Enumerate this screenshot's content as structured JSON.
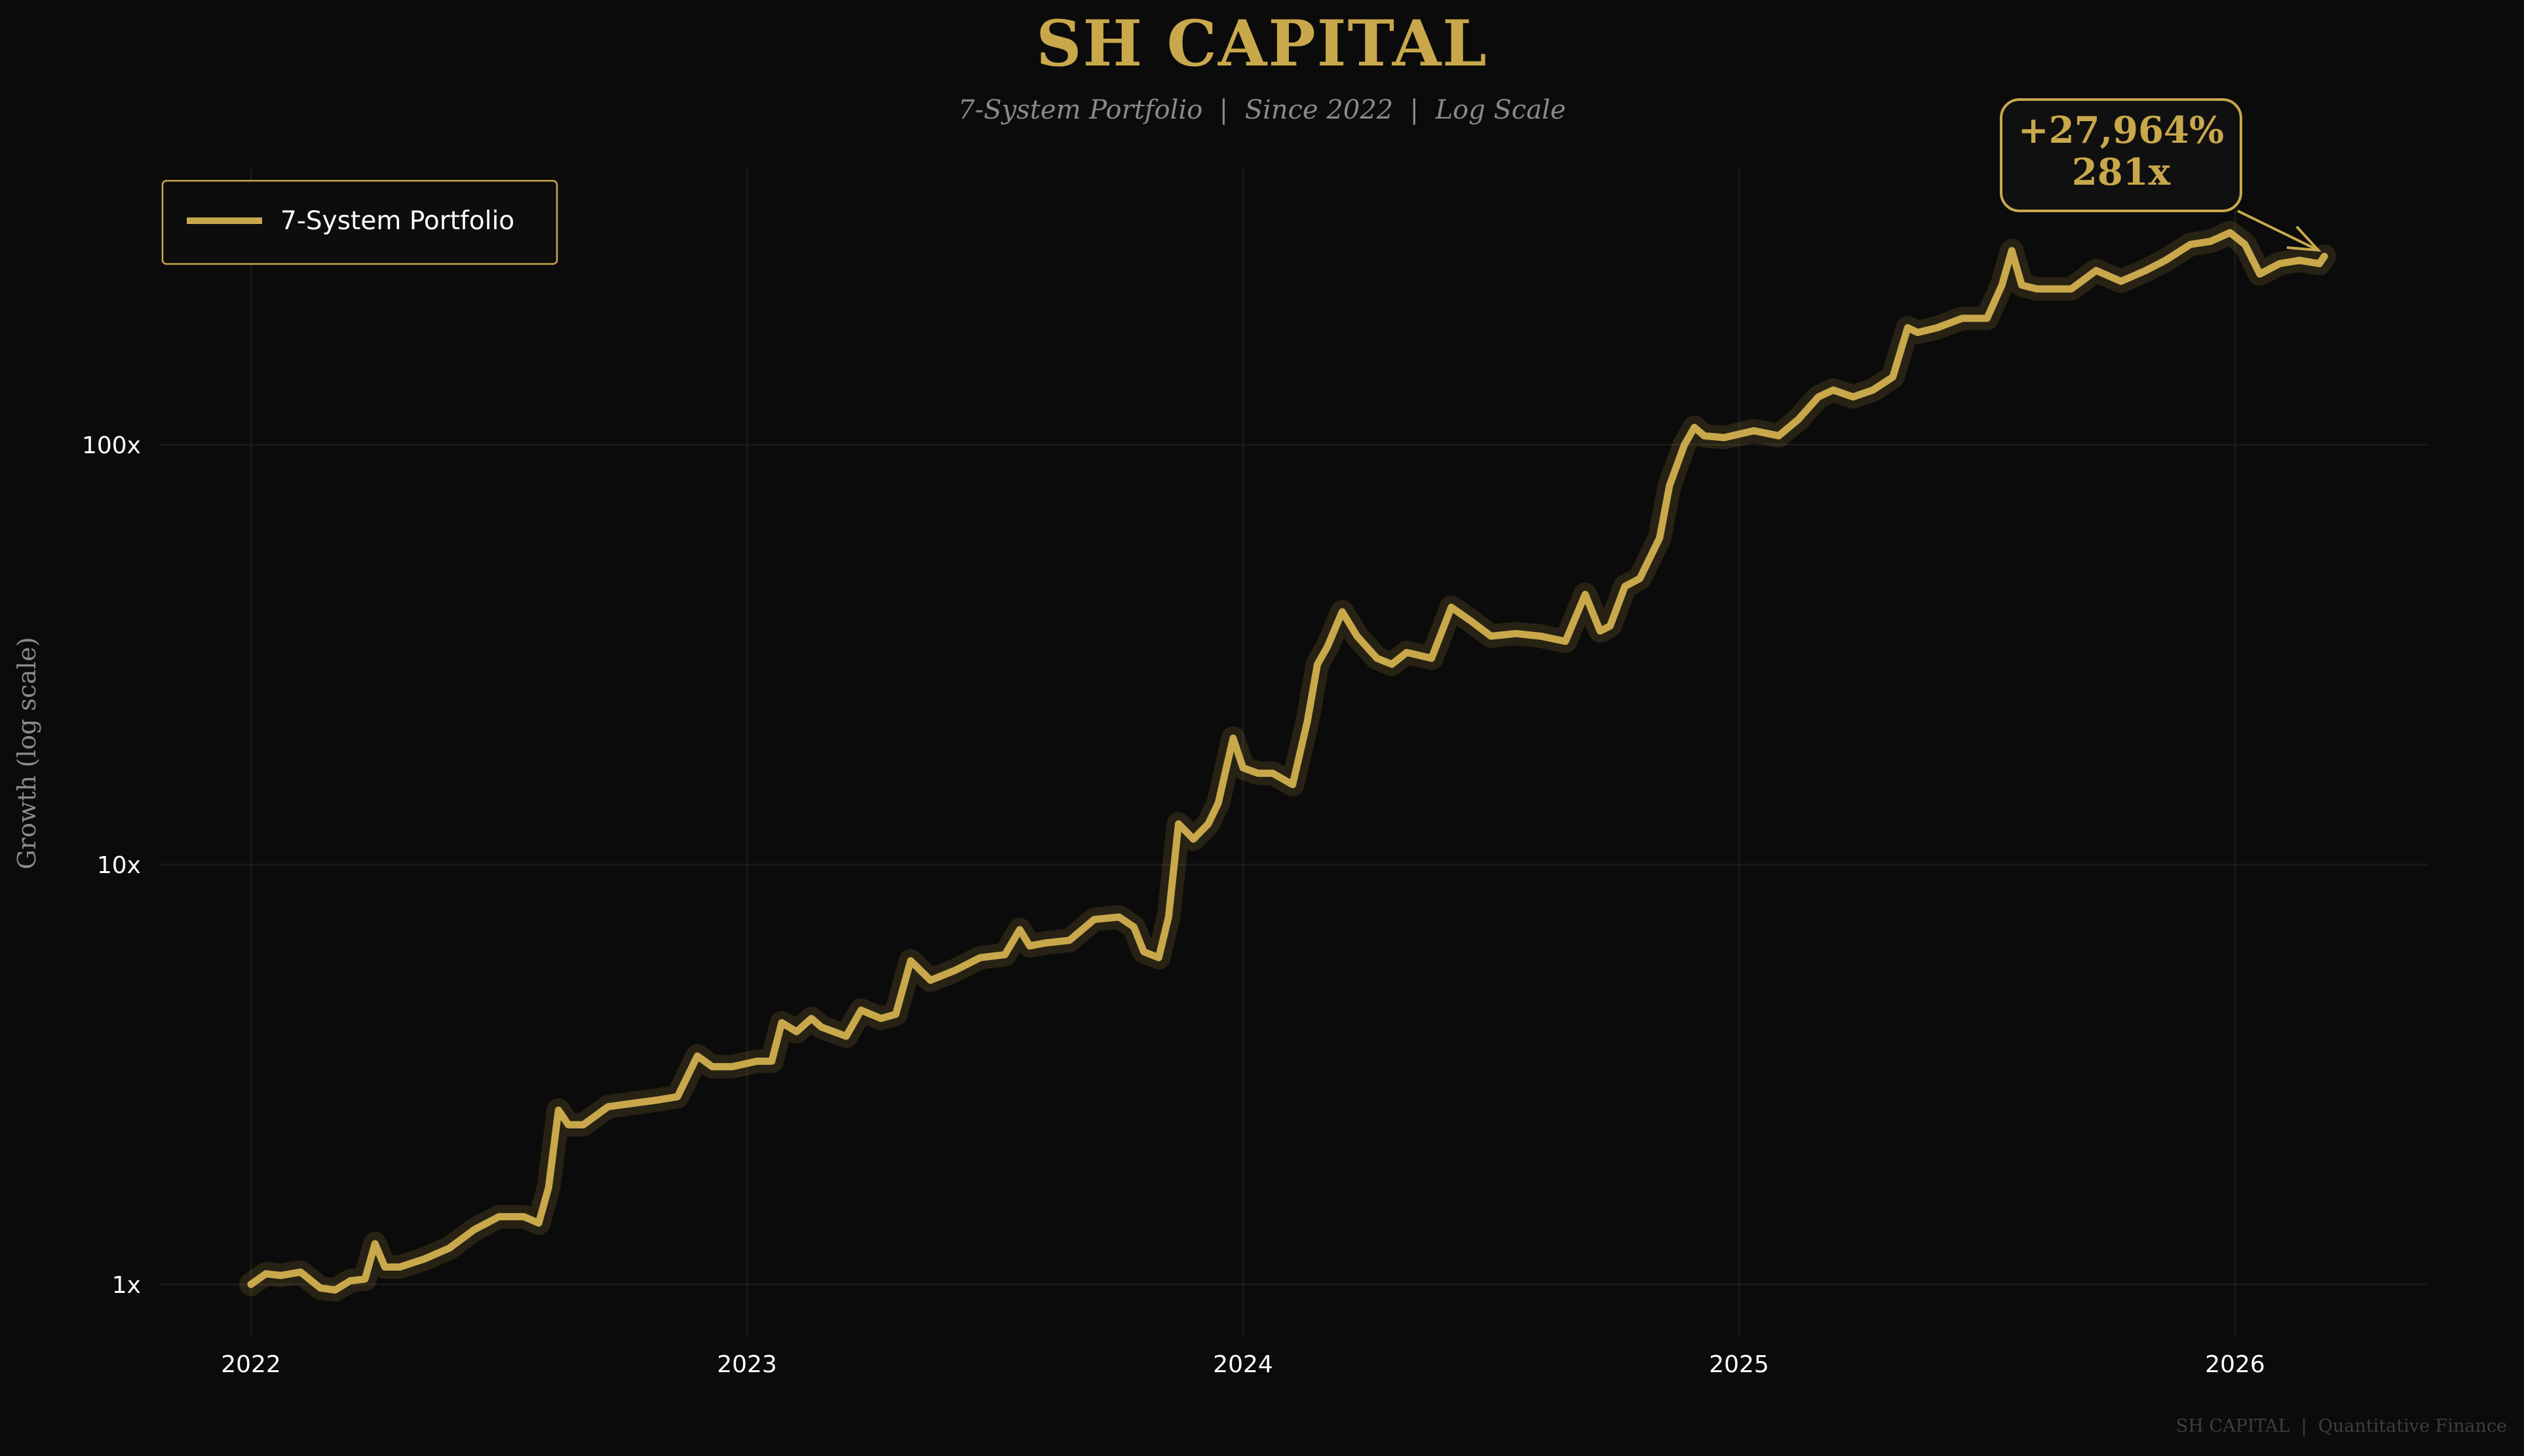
{
  "header": {
    "title": "SH CAPITAL",
    "subtitle": "7-System Portfolio  |  Since 2022  |  Log Scale"
  },
  "footer": "SH CAPITAL  |  Quantitative Finance",
  "colors": {
    "background": "#0b0b0b",
    "line": "#c9a84c",
    "text": "#ffffff",
    "muted": "#8a8a8a"
  },
  "chart_data": {
    "type": "line",
    "title": "SH CAPITAL",
    "subtitle": "7-System Portfolio  |  Since 2022  |  Log Scale",
    "xlabel": "",
    "ylabel": "Growth (log scale)",
    "yscale": "log",
    "xlim": [
      2021.85,
      2026.4
    ],
    "ylim": [
      0.75,
      500
    ],
    "xticks": [
      {
        "value": 2022,
        "label": "2022"
      },
      {
        "value": 2023,
        "label": "2023"
      },
      {
        "value": 2024,
        "label": "2024"
      },
      {
        "value": 2025,
        "label": "2025"
      },
      {
        "value": 2026,
        "label": "2026"
      }
    ],
    "yticks": [
      {
        "value": 1,
        "label": "1x"
      },
      {
        "value": 10,
        "label": "10x"
      },
      {
        "value": 100,
        "label": "100x"
      }
    ],
    "grid": true,
    "legend": {
      "position": "top-left",
      "entries": [
        "7-System Portfolio"
      ]
    },
    "annotation": {
      "line1": "+27,964%",
      "line2": "281x",
      "points_to": [
        2026.18,
        281
      ]
    },
    "series": [
      {
        "name": "7-System Portfolio",
        "x": [
          2022.0,
          2022.03,
          2022.06,
          2022.1,
          2022.14,
          2022.17,
          2022.2,
          2022.23,
          2022.25,
          2022.27,
          2022.3,
          2022.35,
          2022.4,
          2022.45,
          2022.5,
          2022.55,
          2022.58,
          2022.6,
          2022.62,
          2022.64,
          2022.67,
          2022.72,
          2022.77,
          2022.82,
          2022.86,
          2022.9,
          2022.93,
          2022.97,
          2023.02,
          2023.05,
          2023.07,
          2023.1,
          2023.13,
          2023.15,
          2023.2,
          2023.23,
          2023.27,
          2023.3,
          2023.33,
          2023.37,
          2023.42,
          2023.47,
          2023.52,
          2023.55,
          2023.57,
          2023.6,
          2023.65,
          2023.7,
          2023.75,
          2023.78,
          2023.8,
          2023.83,
          2023.85,
          2023.87,
          2023.9,
          2023.93,
          2023.95,
          2023.98,
          2024.0,
          2024.03,
          2024.06,
          2024.1,
          2024.13,
          2024.15,
          2024.17,
          2024.2,
          2024.23,
          2024.27,
          2024.3,
          2024.33,
          2024.38,
          2024.42,
          2024.46,
          2024.5,
          2024.55,
          2024.6,
          2024.65,
          2024.69,
          2024.72,
          2024.74,
          2024.77,
          2024.8,
          2024.84,
          2024.86,
          2024.89,
          2024.91,
          2024.93,
          2024.97,
          2025.03,
          2025.08,
          2025.12,
          2025.16,
          2025.19,
          2025.23,
          2025.27,
          2025.31,
          2025.34,
          2025.36,
          2025.4,
          2025.45,
          2025.5,
          2025.53,
          2025.55,
          2025.57,
          2025.6,
          2025.67,
          2025.72,
          2025.77,
          2025.82,
          2025.86,
          2025.91,
          2025.95,
          2025.99,
          2026.02,
          2026.05,
          2026.09,
          2026.13,
          2026.17,
          2026.18
        ],
        "values": [
          1.0,
          1.06,
          1.05,
          1.07,
          0.98,
          0.97,
          1.02,
          1.03,
          1.25,
          1.1,
          1.1,
          1.15,
          1.22,
          1.35,
          1.45,
          1.45,
          1.4,
          1.7,
          2.6,
          2.4,
          2.4,
          2.65,
          2.7,
          2.75,
          2.8,
          3.5,
          3.3,
          3.3,
          3.4,
          3.4,
          4.2,
          4.0,
          4.3,
          4.1,
          3.9,
          4.5,
          4.3,
          4.4,
          5.9,
          5.3,
          5.6,
          6.0,
          6.1,
          7.0,
          6.4,
          6.5,
          6.6,
          7.4,
          7.5,
          7.1,
          6.2,
          6.0,
          7.5,
          12.5,
          11.5,
          12.5,
          14.0,
          20.0,
          17.0,
          16.5,
          16.5,
          15.5,
          22.0,
          30.0,
          33.0,
          40.0,
          35.0,
          31.0,
          30.0,
          32.0,
          31.0,
          41.0,
          38.0,
          35.0,
          35.5,
          35.0,
          34.0,
          44.0,
          36.0,
          37.0,
          46.0,
          48.0,
          60.0,
          80.0,
          100.0,
          110.0,
          105.0,
          104.0,
          108.0,
          105.0,
          115.0,
          130.0,
          135.0,
          130.0,
          135.0,
          145.0,
          190.0,
          185.0,
          190.0,
          200.0,
          200.0,
          240.0,
          290.0,
          240.0,
          235.0,
          235.0,
          260.0,
          245.0,
          260.0,
          275.0,
          300.0,
          305.0,
          320.0,
          300.0,
          255.0,
          270.0,
          275.0,
          270.0,
          281.0
        ]
      }
    ]
  }
}
